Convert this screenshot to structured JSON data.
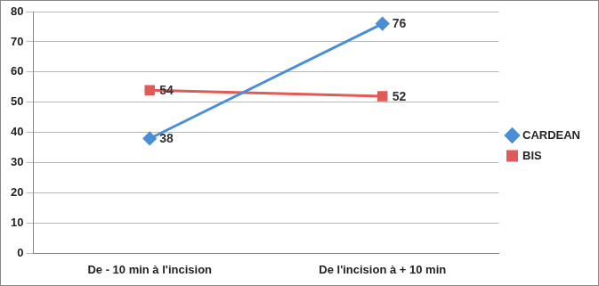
{
  "chart_data": {
    "type": "line",
    "categories": [
      "De - 10 min à l'incision",
      "De l'incision à + 10 min"
    ],
    "series": [
      {
        "name": "CARDEAN",
        "color": "#4a8fd6",
        "marker": "diamond",
        "line_style": "solid",
        "values": [
          38,
          76
        ]
      },
      {
        "name": "BIS",
        "color": "#e05a57",
        "marker": "square",
        "line_style": "solid",
        "values": [
          54,
          52
        ]
      }
    ],
    "ylim": [
      0,
      80
    ],
    "yticks": [
      0,
      10,
      20,
      30,
      40,
      50,
      60,
      70,
      80
    ],
    "grid": true,
    "legend": "right",
    "data_labels": true
  }
}
